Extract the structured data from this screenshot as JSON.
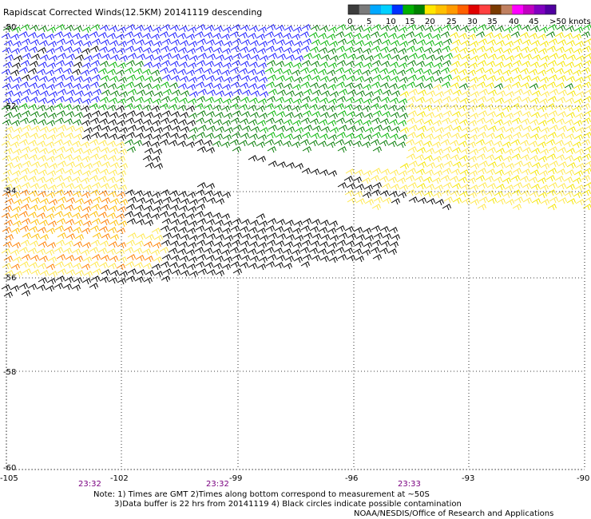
{
  "title": "Rapidscat Corrected Winds(12.5KM) 20141119 descending",
  "legend": {
    "labels": [
      "0",
      "5",
      "10",
      "15",
      "20",
      "25",
      "30",
      "35",
      "40",
      "45",
      ">50 knots"
    ],
    "colors": [
      "#3c3c3c",
      "#7a7a7a",
      "#00a8ff",
      "#00d0ff",
      "#0030ff",
      "#00b000",
      "#008000",
      "#ffe600",
      "#ffc000",
      "#ff9a00",
      "#ff6000",
      "#e00000",
      "#ff4040",
      "#7a3a00",
      "#c08060",
      "#ff00ff",
      "#c000c0",
      "#8000c0",
      "#5000a0"
    ]
  },
  "axes": {
    "lat_labels": [
      "-50",
      "-52",
      "-54",
      "-56",
      "-58",
      "-60"
    ],
    "lon_labels": [
      "-105",
      "-102",
      "-99",
      "-96",
      "-93",
      "-90"
    ],
    "time_labels": [
      "23:32",
      "23:32",
      "23:33"
    ]
  },
  "notes": {
    "line1": "Note: 1) Times are GMT 2)Times along bottom correspond to measurement at ~50S",
    "line2": "3)Data buffer is 22 hrs from 20141119 4) Black circles indicate possible contamination",
    "credit": "NOAA/NESDIS/Office of Research and Applications"
  },
  "wind_colors": {
    "black": "#000000",
    "blue": "#1a1aff",
    "dark_green": "#007a00",
    "green": "#00b400",
    "yellow": "#f5e600",
    "light_yellow": "#ffe84a",
    "orange_yellow": "#ffbe00",
    "orange": "#ff7f00"
  }
}
